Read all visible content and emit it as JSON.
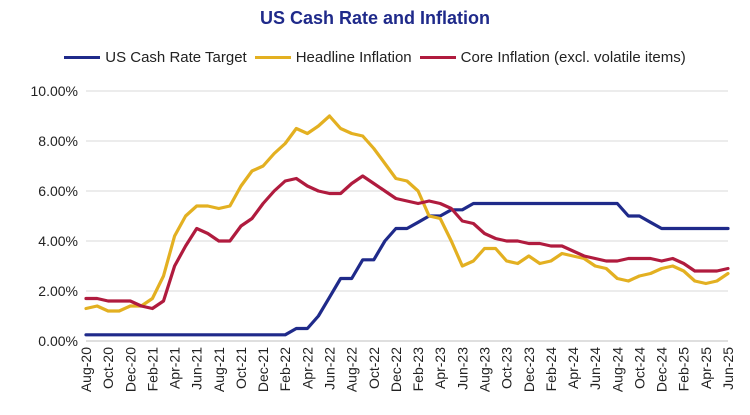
{
  "chart_data": {
    "type": "line",
    "title": "US Cash Rate and Inflation",
    "xlabel": "",
    "ylabel": "",
    "ylim": [
      0,
      10
    ],
    "y_ticks": [
      "0.00%",
      "2.00%",
      "4.00%",
      "6.00%",
      "8.00%",
      "10.00%"
    ],
    "grid": "horizontal",
    "legend_position": "top",
    "categories": [
      "Aug-20",
      "Sep-20",
      "Oct-20",
      "Nov-20",
      "Dec-20",
      "Jan-21",
      "Feb-21",
      "Mar-21",
      "Apr-21",
      "May-21",
      "Jun-21",
      "Jul-21",
      "Aug-21",
      "Sep-21",
      "Oct-21",
      "Nov-21",
      "Dec-21",
      "Jan-22",
      "Feb-22",
      "Mar-22",
      "Apr-22",
      "May-22",
      "Jun-22",
      "Jul-22",
      "Aug-22",
      "Sep-22",
      "Oct-22",
      "Nov-22",
      "Dec-22",
      "Jan-23",
      "Feb-23",
      "Mar-23",
      "Apr-23",
      "May-23",
      "Jun-23",
      "Jul-23",
      "Aug-23",
      "Sep-23",
      "Oct-23",
      "Nov-23",
      "Dec-23",
      "Jan-24",
      "Feb-24",
      "Mar-24",
      "Apr-24",
      "May-24",
      "Jun-24",
      "Jul-24",
      "Aug-24",
      "Sep-24",
      "Oct-24",
      "Nov-24",
      "Dec-24",
      "Jan-25",
      "Feb-25",
      "Mar-25",
      "Apr-25",
      "May-25",
      "Jun-25"
    ],
    "x_tick_labels": [
      "Aug-20",
      "Oct-20",
      "Dec-20",
      "Feb-21",
      "Apr-21",
      "Jun-21",
      "Aug-21",
      "Oct-21",
      "Dec-21",
      "Feb-22",
      "Apr-22",
      "Jun-22",
      "Aug-22",
      "Oct-22",
      "Dec-22",
      "Feb-23",
      "Apr-23",
      "Jun-23",
      "Aug-23",
      "Oct-23",
      "Dec-23",
      "Feb-24",
      "Apr-24",
      "Jun-24",
      "Aug-24",
      "Oct-24",
      "Dec-24",
      "Feb-25",
      "Apr-25",
      "Jun-25"
    ],
    "series": [
      {
        "name": "US Cash Rate Target",
        "color": "#1f2a8a",
        "values": [
          0.25,
          0.25,
          0.25,
          0.25,
          0.25,
          0.25,
          0.25,
          0.25,
          0.25,
          0.25,
          0.25,
          0.25,
          0.25,
          0.25,
          0.25,
          0.25,
          0.25,
          0.25,
          0.25,
          0.5,
          0.5,
          1.0,
          1.75,
          2.5,
          2.5,
          3.25,
          3.25,
          4.0,
          4.5,
          4.5,
          4.75,
          5.0,
          5.0,
          5.25,
          5.25,
          5.5,
          5.5,
          5.5,
          5.5,
          5.5,
          5.5,
          5.5,
          5.5,
          5.5,
          5.5,
          5.5,
          5.5,
          5.5,
          5.5,
          5.0,
          5.0,
          4.75,
          4.5,
          4.5,
          4.5,
          4.5,
          4.5,
          4.5,
          4.5
        ]
      },
      {
        "name": "Headline Inflation",
        "color": "#e3b021",
        "values": [
          1.3,
          1.4,
          1.2,
          1.2,
          1.4,
          1.4,
          1.7,
          2.6,
          4.2,
          5.0,
          5.4,
          5.4,
          5.3,
          5.4,
          6.2,
          6.8,
          7.0,
          7.5,
          7.9,
          8.5,
          8.3,
          8.6,
          9.0,
          8.5,
          8.3,
          8.2,
          7.7,
          7.1,
          6.5,
          6.4,
          6.0,
          5.0,
          4.9,
          4.0,
          3.0,
          3.2,
          3.7,
          3.7,
          3.2,
          3.1,
          3.4,
          3.1,
          3.2,
          3.5,
          3.4,
          3.3,
          3.0,
          2.9,
          2.5,
          2.4,
          2.6,
          2.7,
          2.9,
          3.0,
          2.8,
          2.4,
          2.3,
          2.4,
          2.7
        ]
      },
      {
        "name": "Core Inflation (excl. volatile items)",
        "color": "#b01b3e",
        "values": [
          1.7,
          1.7,
          1.6,
          1.6,
          1.6,
          1.4,
          1.3,
          1.6,
          3.0,
          3.8,
          4.5,
          4.3,
          4.0,
          4.0,
          4.6,
          4.9,
          5.5,
          6.0,
          6.4,
          6.5,
          6.2,
          6.0,
          5.9,
          5.9,
          6.3,
          6.6,
          6.3,
          6.0,
          5.7,
          5.6,
          5.5,
          5.6,
          5.5,
          5.3,
          4.8,
          4.7,
          4.3,
          4.1,
          4.0,
          4.0,
          3.9,
          3.9,
          3.8,
          3.8,
          3.6,
          3.4,
          3.3,
          3.2,
          3.2,
          3.3,
          3.3,
          3.3,
          3.2,
          3.3,
          3.1,
          2.8,
          2.8,
          2.8,
          2.9
        ]
      }
    ]
  }
}
